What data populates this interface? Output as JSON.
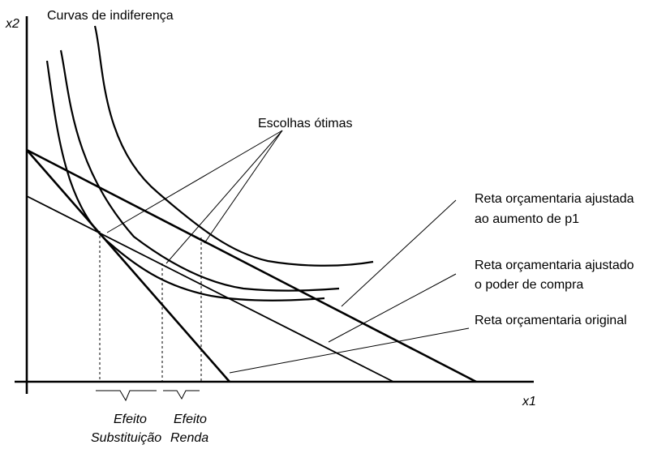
{
  "diagram": {
    "title": "Curvas de indiferença",
    "axis_y_label": "x2",
    "axis_x_label": "x1",
    "optimal_label": "Escolhas ótimas",
    "budget_adjusted_p1": [
      "Reta orçamentaria ajustada",
      "ao aumento de p1"
    ],
    "budget_adjusted_power": [
      "Reta orçamentaria ajustado",
      "o poder de compra"
    ],
    "budget_original": "Reta orçamentaria original",
    "substitution_effect": [
      "Efeito",
      "Substituição"
    ],
    "income_effect": [
      "Efeito",
      "Renda"
    ]
  },
  "colors": {
    "ink": "#000000",
    "background": "#ffffff"
  }
}
